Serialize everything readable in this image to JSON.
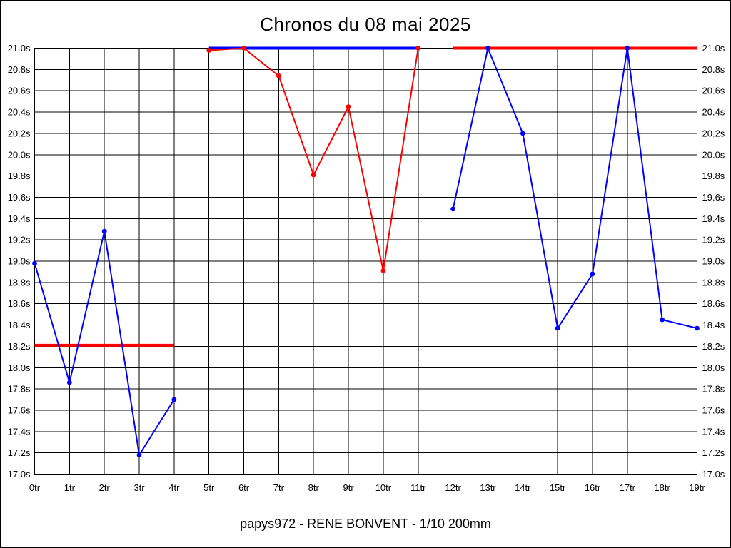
{
  "title": "Chronos du 08 mai 2025",
  "caption": "papys972 - RENE BONVENT - 1/10 200mm",
  "colors": {
    "red": "#ff0000",
    "blue": "#0000ff",
    "grid": "#000000",
    "text": "#000000",
    "background": "#ffffff"
  },
  "chart_data": {
    "type": "line",
    "title": "Chronos du 08 mai 2025",
    "subtitle": "papys972 - RENE BONVENT - 1/10 200mm",
    "xlabel": "",
    "ylabel": "",
    "x_unit": "tr",
    "x_labels": [
      "0tr",
      "1tr",
      "2tr",
      "3tr",
      "4tr",
      "5tr",
      "6tr",
      "7tr",
      "8tr",
      "9tr",
      "10tr",
      "11tr",
      "12tr",
      "13tr",
      "14tr",
      "15tr",
      "16tr",
      "17tr",
      "18tr",
      "19tr"
    ],
    "ylim": [
      17.0,
      21.0
    ],
    "ytick_step": 0.2,
    "y_tick_values": [
      21.0,
      20.8,
      20.6,
      20.4,
      20.2,
      20.0,
      19.8,
      19.6,
      19.4,
      19.2,
      19.0,
      18.8,
      18.6,
      18.4,
      18.2,
      18.0,
      17.8,
      17.6,
      17.4,
      17.2,
      17.0
    ],
    "y_tick_labels": [
      "21.0s",
      "20.8s",
      "20.6s",
      "20.4s",
      "20.2s",
      "20.0s",
      "19.8s",
      "19.6s",
      "19.4s",
      "19.2s",
      "19.0s",
      "18.8s",
      "18.6s",
      "18.4s",
      "18.2s",
      "18.0s",
      "17.8s",
      "17.6s",
      "17.4s",
      "17.2s",
      "17.0s"
    ],
    "grid": true,
    "legend_position": "none",
    "series": [
      {
        "name": "red-flat-0-4tr",
        "color": "red",
        "marker": false,
        "width": 4,
        "points": [
          [
            0,
            18.21
          ],
          [
            4,
            18.21
          ]
        ]
      },
      {
        "name": "blue-flat-5-11tr",
        "color": "blue",
        "marker": false,
        "width": 4,
        "points": [
          [
            5,
            21.0
          ],
          [
            11,
            21.0
          ]
        ]
      },
      {
        "name": "red-flat-12-19tr",
        "color": "red",
        "marker": false,
        "width": 4,
        "points": [
          [
            12,
            21.0
          ],
          [
            19,
            21.0
          ]
        ]
      },
      {
        "name": "blue-laps-0-4tr",
        "color": "blue",
        "marker": true,
        "width": 2,
        "points": [
          [
            0,
            18.98
          ],
          [
            1,
            17.86
          ],
          [
            2,
            19.28
          ],
          [
            3,
            17.18
          ],
          [
            4,
            17.7
          ]
        ]
      },
      {
        "name": "red-laps-5-11tr",
        "color": "red",
        "marker": true,
        "width": 2,
        "points": [
          [
            5,
            20.98
          ],
          [
            6,
            21.0
          ],
          [
            7,
            20.74
          ],
          [
            8,
            19.81
          ],
          [
            9,
            20.45
          ],
          [
            10,
            18.91
          ],
          [
            11,
            21.0
          ]
        ]
      },
      {
        "name": "blue-laps-12-19tr",
        "color": "blue",
        "marker": true,
        "width": 2,
        "points": [
          [
            12,
            19.49
          ],
          [
            13,
            21.0
          ],
          [
            14,
            20.2
          ],
          [
            15,
            18.37
          ],
          [
            16,
            18.88
          ],
          [
            17,
            21.0
          ],
          [
            18,
            18.45
          ],
          [
            19,
            18.37
          ]
        ]
      }
    ]
  }
}
